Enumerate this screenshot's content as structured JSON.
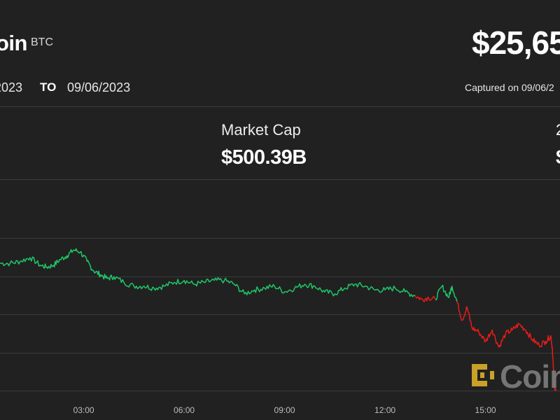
{
  "header": {
    "coin_name": "oin",
    "ticker": "BTC",
    "price": "$25,65"
  },
  "range": {
    "from_date": "2023",
    "to_label": "TO",
    "to_date": "09/06/2023",
    "captured": "Captured on 09/06/2"
  },
  "stats": {
    "market_cap_label": "Market Cap",
    "market_cap_value": "$500.39B",
    "right_partial_label": "2",
    "right_partial_value": "$"
  },
  "watermark": {
    "text": "Coin",
    "logo_color": "#c9a227",
    "icon": "coindesk-logo-icon"
  },
  "colors": {
    "up": "#1fc767",
    "down": "#e81b1b",
    "grid": "#3a3a3a",
    "background": "#212121"
  },
  "chart_data": {
    "type": "line",
    "xlabel": "",
    "ylabel": "",
    "x_ticks": [
      "03:00",
      "06:00",
      "09:00",
      "12:00",
      "15:00"
    ],
    "x_tick_hours": [
      3,
      6,
      9,
      12,
      15
    ],
    "x_range_hours": [
      0.5,
      17.1
    ],
    "ylim": [
      0,
      100
    ],
    "grid": "horizontal",
    "series": [
      {
        "segment": "up",
        "x": [
          0.5,
          0.8,
          1.1,
          1.4,
          1.7,
          1.9,
          2.1,
          2.3,
          2.5,
          2.7,
          2.9,
          3.1,
          3.3,
          3.5,
          3.7,
          3.9,
          4.2,
          4.5,
          4.8,
          5.1,
          5.4,
          5.7,
          6.0,
          6.3,
          6.6,
          6.9,
          7.2,
          7.5,
          7.8,
          8.1,
          8.4,
          8.7,
          9.0,
          9.3,
          9.6,
          9.9,
          10.2,
          10.5,
          10.8,
          11.1,
          11.4,
          11.7,
          12.0,
          12.3,
          12.6,
          12.9
        ],
        "y": [
          72,
          72,
          73,
          75,
          71,
          70,
          71,
          74,
          76,
          79,
          78,
          73,
          68,
          66,
          64,
          65,
          62,
          60,
          60,
          59,
          60,
          62,
          63,
          61,
          62,
          63,
          63,
          61,
          56,
          58,
          59,
          60,
          57,
          59,
          61,
          60,
          57,
          56,
          59,
          61,
          60,
          58,
          58,
          59,
          57,
          55
        ]
      },
      {
        "segment": "down",
        "x": [
          12.9,
          13.1,
          13.3,
          13.5
        ],
        "y": [
          55,
          53,
          54,
          53
        ]
      },
      {
        "segment": "up",
        "x": [
          13.5,
          13.7,
          13.9,
          14.0,
          14.15
        ],
        "y": [
          53,
          60,
          54,
          60,
          52
        ]
      },
      {
        "segment": "down",
        "x": [
          14.15,
          14.3,
          14.45,
          14.6,
          14.8,
          15.0,
          15.2,
          15.4,
          15.6,
          15.8,
          16.0,
          16.2,
          16.4,
          16.6,
          16.8,
          16.95,
          17.0,
          17.05,
          17.1
        ],
        "y": [
          52,
          42,
          49,
          38,
          36,
          31,
          37,
          28,
          35,
          37,
          40,
          37,
          32,
          29,
          31,
          34,
          27,
          8,
          5
        ]
      }
    ]
  }
}
